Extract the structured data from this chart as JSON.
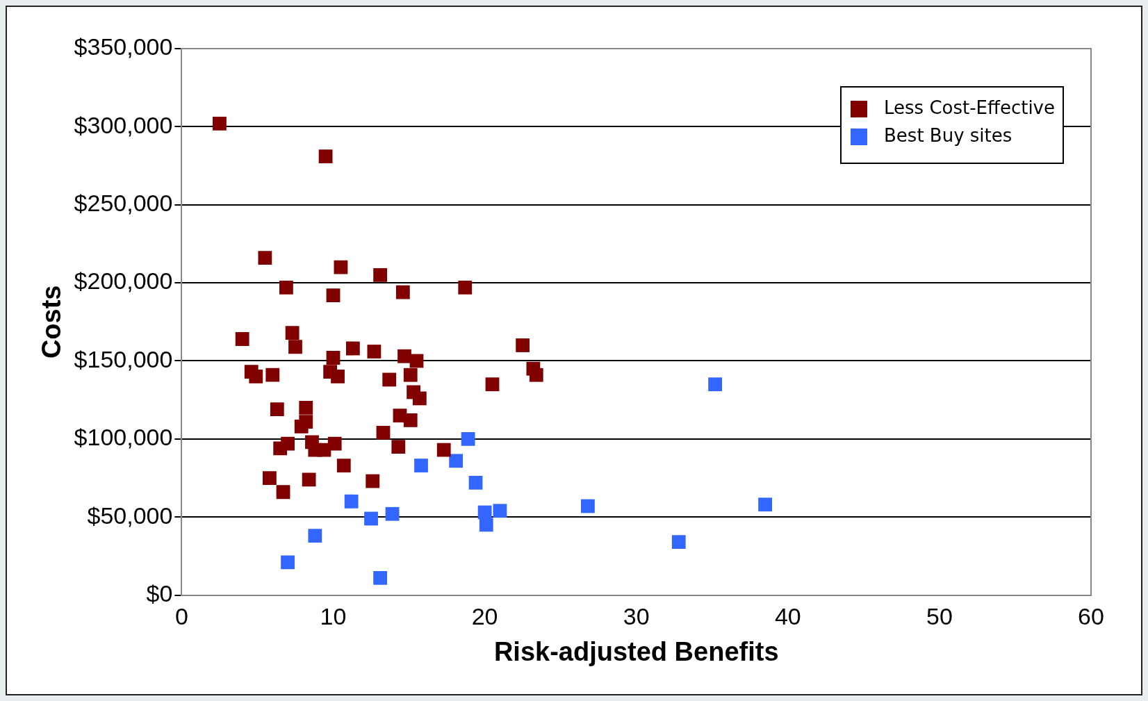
{
  "chart_data": {
    "type": "scatter",
    "xlabel": "Risk-adjusted Benefits",
    "ylabel": "Costs",
    "xlim": [
      0,
      60
    ],
    "xticks": [
      0,
      10,
      20,
      30,
      40,
      50,
      60
    ],
    "ylim": [
      0,
      350000
    ],
    "yticks": [
      {
        "value": 0,
        "label": "$0"
      },
      {
        "value": 50000,
        "label": "$50,000"
      },
      {
        "value": 100000,
        "label": "$100,000"
      },
      {
        "value": 150000,
        "label": "$150,000"
      },
      {
        "value": 200000,
        "label": "$200,000"
      },
      {
        "value": 250000,
        "label": "$250,000"
      },
      {
        "value": 300000,
        "label": "$300,000"
      },
      {
        "value": 350000,
        "label": "$350,000"
      }
    ],
    "grid": "y",
    "legend": "top right",
    "marker": "square",
    "series": [
      {
        "name": "Less Cost-Effective",
        "color": "#800000",
        "x": [
          2.5,
          9.5,
          5.5,
          10.5,
          13.1,
          6.9,
          18.7,
          14.6,
          10.0,
          4.0,
          7.3,
          7.5,
          22.5,
          11.3,
          12.7,
          14.7,
          15.5,
          10.0,
          9.8,
          10.3,
          4.6,
          4.9,
          6.0,
          23.2,
          23.4,
          20.5,
          13.7,
          15.1,
          15.3,
          15.7,
          6.3,
          8.2,
          14.4,
          15.1,
          8.2,
          7.9,
          13.3,
          6.5,
          7.0,
          8.6,
          8.8,
          9.4,
          10.1,
          14.3,
          17.3,
          10.7,
          5.8,
          8.4,
          12.6,
          6.7
        ],
        "values": [
          302000,
          281000,
          216000,
          210000,
          205000,
          197000,
          197000,
          194000,
          192000,
          164000,
          168000,
          159000,
          160000,
          158000,
          156000,
          153000,
          150000,
          152000,
          143000,
          140000,
          143000,
          140000,
          141000,
          145000,
          141000,
          135000,
          138000,
          141000,
          130000,
          126000,
          119000,
          120000,
          115000,
          112000,
          111000,
          108000,
          104000,
          94000,
          97000,
          98000,
          93000,
          93000,
          97000,
          95000,
          93000,
          83000,
          75000,
          74000,
          73000,
          66000
        ]
      },
      {
        "name": "Best Buy sites",
        "color": "#3366ff",
        "x": [
          35.2,
          18.9,
          15.8,
          18.1,
          19.4,
          11.2,
          20.0,
          21.0,
          20.1,
          12.5,
          13.9,
          26.8,
          38.5,
          8.8,
          7.0,
          32.8,
          13.1
        ],
        "values": [
          135000,
          100000,
          83000,
          86000,
          72000,
          60000,
          53000,
          54000,
          45000,
          49000,
          52000,
          57000,
          58000,
          38000,
          21000,
          34000,
          11000
        ]
      }
    ]
  }
}
